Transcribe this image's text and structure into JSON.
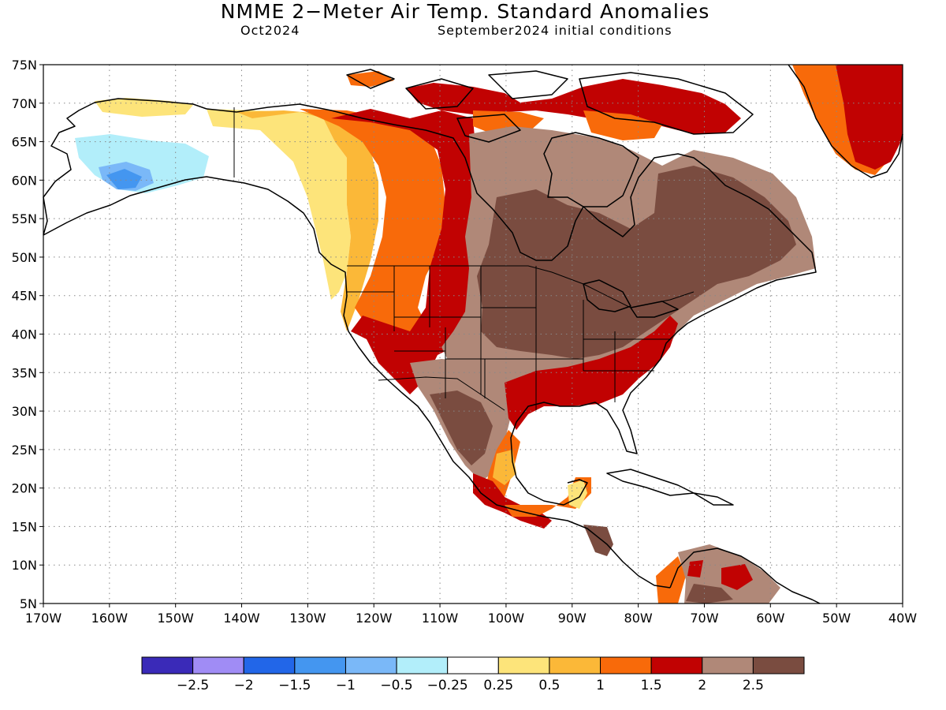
{
  "header": {
    "title": "NMME 2−Meter Air Temp. Standard Anomalies",
    "valid_month": "Oct2024",
    "initial_conditions": "September2024 initial conditions"
  },
  "axes": {
    "lat_labels": [
      "75N",
      "70N",
      "65N",
      "60N",
      "55N",
      "50N",
      "45N",
      "40N",
      "35N",
      "30N",
      "25N",
      "20N",
      "15N",
      "10N",
      "5N"
    ],
    "lon_labels": [
      "170W",
      "160W",
      "150W",
      "140W",
      "130W",
      "120W",
      "110W",
      "100W",
      "90W",
      "80W",
      "70W",
      "60W",
      "50W",
      "40W"
    ],
    "lat_range": [
      5,
      75
    ],
    "lon_range": [
      -170,
      -40
    ]
  },
  "colorbar": {
    "colors": [
      "#3a2ab8",
      "#a08cf5",
      "#2266e8",
      "#4496f0",
      "#7ab8f8",
      "#b2eefa",
      "#ffffff",
      "#fde47a",
      "#fbb838",
      "#f86a0a",
      "#c10202",
      "#b08878",
      "#7a4c40"
    ],
    "tick_labels": [
      "−2.5",
      "−2",
      "−1.5",
      "−1",
      "−0.5",
      "−0.25",
      "0.25",
      "0.5",
      "1",
      "1.5",
      "2",
      "2.5"
    ]
  },
  "palette": {
    "neg3": "#3a2ab8",
    "neg2": "#2266e8",
    "neg1": "#7ab8f8",
    "neg0": "#b2eefa",
    "p1": "#fde47a",
    "p2": "#fbb838",
    "p3": "#f86a0a",
    "p4": "#c10202",
    "p5": "#b08878",
    "p6": "#7a4c40"
  }
}
